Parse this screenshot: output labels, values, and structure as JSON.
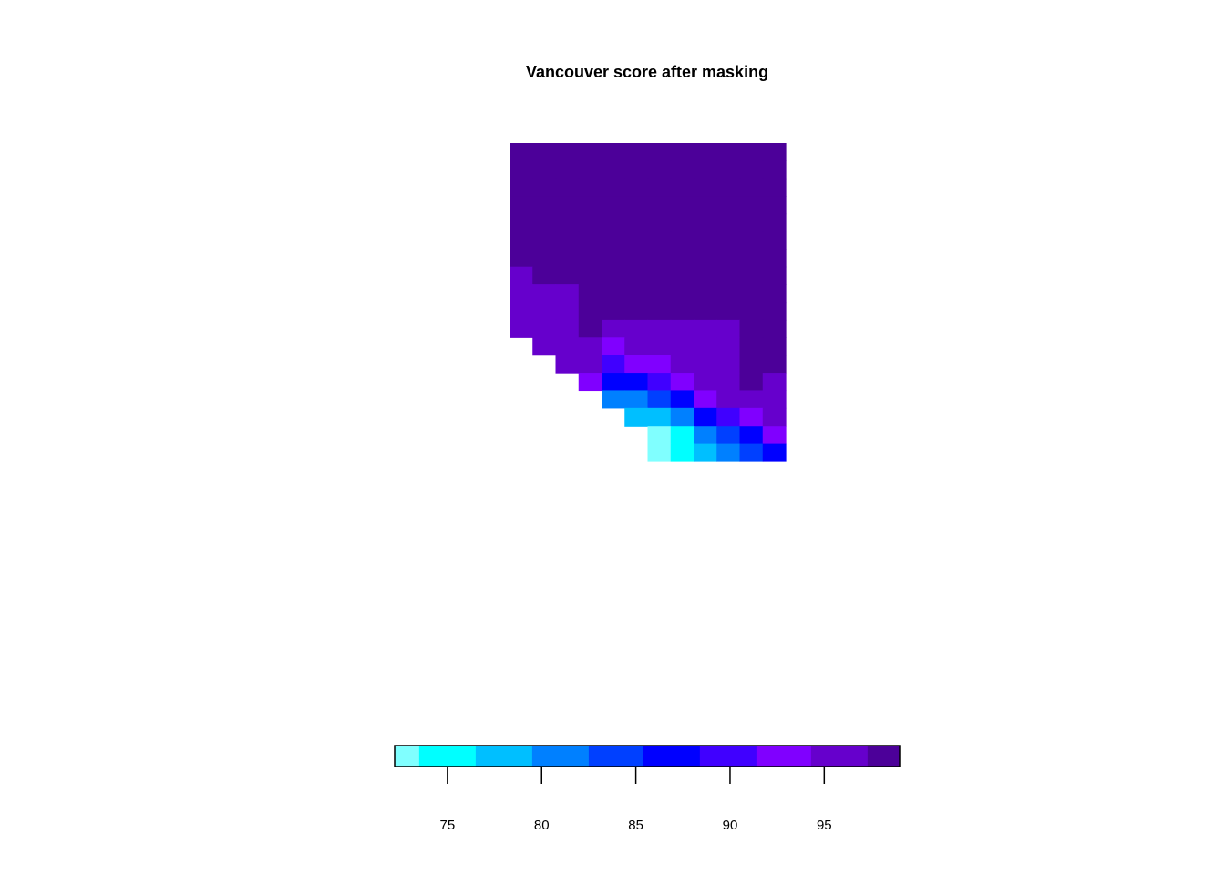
{
  "chart_data": {
    "type": "heatmap",
    "title": "Vancouver score after masking",
    "xlabel": "",
    "ylabel": "",
    "legend_placement": "bottom",
    "nodata_color": "#ffffff",
    "legend": {
      "range": [
        72.2,
        99
      ],
      "breaks": [
        72.2,
        73.5,
        76.5,
        79.5,
        82.5,
        85.4,
        88.4,
        91.4,
        94.3,
        97.3,
        99
      ],
      "colors": [
        "#80ffff",
        "#00ffff",
        "#00bfff",
        "#0080ff",
        "#0040ff",
        "#0000ff",
        "#4000ff",
        "#8000ff",
        "#6600cc",
        "#4c0099"
      ],
      "ticks": [
        75,
        80,
        85,
        90,
        95
      ],
      "tick_labels": [
        "75",
        "80",
        "85",
        "90",
        "95"
      ]
    },
    "grid": {
      "ncols": 12,
      "nrows": 18,
      "values": [
        [
          99,
          99,
          99,
          99,
          99,
          99,
          99,
          99,
          99,
          99,
          99,
          99
        ],
        [
          99,
          99,
          99,
          99,
          99,
          99,
          99,
          99,
          99,
          99,
          99,
          99
        ],
        [
          99,
          99,
          99,
          99,
          99,
          99,
          99,
          99,
          99,
          99,
          99,
          99
        ],
        [
          99,
          99,
          99,
          99,
          99,
          99,
          99,
          99,
          99,
          99,
          99,
          99
        ],
        [
          99,
          99,
          99,
          99,
          99,
          99,
          99,
          99,
          99,
          99,
          99,
          99
        ],
        [
          99,
          99,
          99,
          99,
          99,
          99,
          99,
          99,
          99,
          99,
          99,
          99
        ],
        [
          99,
          99,
          99,
          99,
          99,
          99,
          99,
          99,
          99,
          99,
          99,
          99
        ],
        [
          96,
          99,
          99,
          99,
          99,
          99,
          99,
          99,
          99,
          99,
          99,
          99
        ],
        [
          96,
          96,
          96,
          99,
          99,
          99,
          99,
          99,
          99,
          99,
          99,
          99
        ],
        [
          96,
          96,
          96,
          99,
          99,
          99,
          99,
          99,
          99,
          99,
          99,
          99
        ],
        [
          96,
          96,
          96,
          99,
          96,
          96,
          96,
          96,
          96,
          96,
          99,
          99
        ],
        [
          null,
          96,
          96,
          96,
          92,
          96,
          96,
          96,
          96,
          96,
          99,
          99
        ],
        [
          null,
          null,
          96,
          96,
          90,
          92,
          92,
          96,
          96,
          96,
          99,
          99
        ],
        [
          null,
          null,
          null,
          92,
          86,
          86,
          90,
          92,
          96,
          96,
          99,
          96
        ],
        [
          null,
          null,
          null,
          null,
          81,
          81,
          84,
          86,
          92,
          96,
          96,
          96
        ],
        [
          null,
          null,
          null,
          null,
          null,
          77,
          77,
          81,
          86,
          90,
          92,
          96
        ],
        [
          null,
          null,
          null,
          null,
          null,
          null,
          73,
          75,
          80,
          84,
          86,
          92
        ],
        [
          null,
          null,
          null,
          null,
          null,
          null,
          73,
          75,
          77,
          81,
          84,
          86
        ]
      ]
    }
  }
}
